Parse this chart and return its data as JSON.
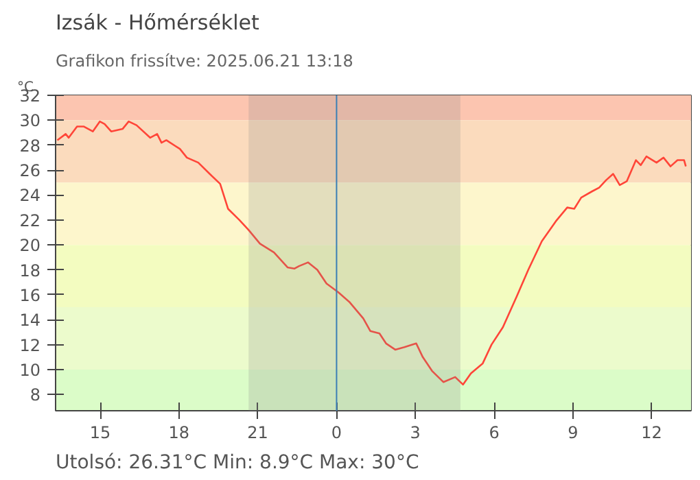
{
  "chart_data": {
    "type": "line",
    "title": "Izsák - Hőmérséklet",
    "subtitle": "Grafikon frissítve: 2025.06.21 13:18",
    "ylabel": "°C",
    "annotations": [
      "Utolsó: 26.31°C  Min: 8.9°C  Max: 30°C"
    ],
    "x": [
      "2025-06-20T13:22",
      "2025-06-20T13:41",
      "2025-06-20T13:48",
      "2025-06-20T14:07",
      "2025-06-20T14:22",
      "2025-06-20T14:43",
      "2025-06-20T14:59",
      "2025-06-20T15:10",
      "2025-06-20T15:25",
      "2025-06-20T15:51",
      "2025-06-20T16:05",
      "2025-06-20T16:23",
      "2025-06-20T16:54",
      "2025-06-20T17:10",
      "2025-06-20T17:20",
      "2025-06-20T17:31",
      "2025-06-20T18:02",
      "2025-06-20T18:18",
      "2025-06-20T18:44",
      "2025-06-20T19:10",
      "2025-06-20T19:34",
      "2025-06-20T19:52",
      "2025-06-20T20:18",
      "2025-06-20T20:39",
      "2025-06-20T21:05",
      "2025-06-20T21:37",
      "2025-06-20T22:08",
      "2025-06-20T22:24",
      "2025-06-20T22:34",
      "2025-06-20T22:55",
      "2025-06-20T23:16",
      "2025-06-20T23:37",
      "2025-06-21T00:04",
      "2025-06-21T00:30",
      "2025-06-21T01:01",
      "2025-06-21T01:17",
      "2025-06-21T01:38",
      "2025-06-21T01:53",
      "2025-06-21T02:14",
      "2025-06-21T02:35",
      "2025-06-21T03:02",
      "2025-06-21T03:17",
      "2025-06-21T03:38",
      "2025-06-21T04:04",
      "2025-06-21T04:31",
      "2025-06-21T04:49",
      "2025-06-21T05:07",
      "2025-06-21T05:34",
      "2025-06-21T05:54",
      "2025-06-21T06:20",
      "2025-06-21T06:52",
      "2025-06-21T07:18",
      "2025-06-21T07:49",
      "2025-06-21T08:21",
      "2025-06-21T08:47",
      "2025-06-21T09:03",
      "2025-06-21T09:19",
      "2025-06-21T09:44",
      "2025-06-21T10:00",
      "2025-06-21T10:16",
      "2025-06-21T10:32",
      "2025-06-21T10:47",
      "2025-06-21T11:03",
      "2025-06-21T11:24",
      "2025-06-21T11:35",
      "2025-06-21T11:48",
      "2025-06-21T12:11",
      "2025-06-21T12:27",
      "2025-06-21T12:43",
      "2025-06-21T12:59",
      "2025-06-21T13:14",
      "2025-06-21T13:18"
    ],
    "series": [
      {
        "color": "#ff4538",
        "values": [
          28.4,
          28.9,
          28.6,
          29.5,
          29.5,
          29.1,
          29.9,
          29.7,
          29.1,
          29.3,
          29.9,
          29.6,
          28.6,
          28.9,
          28.2,
          28.4,
          27.7,
          27.0,
          26.6,
          25.7,
          24.9,
          22.9,
          22.0,
          21.2,
          20.1,
          19.4,
          18.2,
          18.1,
          18.3,
          18.6,
          18.0,
          16.9,
          16.2,
          15.4,
          14.1,
          13.1,
          12.9,
          12.1,
          11.6,
          11.8,
          12.1,
          11.0,
          9.9,
          9.0,
          9.4,
          8.8,
          9.7,
          10.5,
          12.0,
          13.4,
          15.9,
          18.0,
          20.3,
          21.9,
          23.0,
          22.9,
          23.8,
          24.3,
          24.6,
          25.2,
          25.7,
          24.8,
          25.1,
          26.8,
          26.4,
          27.1,
          26.6,
          27.0,
          26.3,
          26.8,
          26.8,
          26.3
        ]
      }
    ],
    "xlim": [
      "2025-06-20T13:18",
      "2025-06-21T13:30"
    ],
    "ylim": [
      6.7,
      32
    ],
    "xticks": [
      {
        "value": "2025-06-20T15:00",
        "label": "15"
      },
      {
        "value": "2025-06-20T18:00",
        "label": "18"
      },
      {
        "value": "2025-06-20T21:00",
        "label": "21"
      },
      {
        "value": "2025-06-21T00:00",
        "label": "0"
      },
      {
        "value": "2025-06-21T03:00",
        "label": "3"
      },
      {
        "value": "2025-06-21T06:00",
        "label": "6"
      },
      {
        "value": "2025-06-21T09:00",
        "label": "9"
      },
      {
        "value": "2025-06-21T12:00",
        "label": "12"
      }
    ],
    "yticks": [
      8,
      10,
      12,
      14,
      16,
      18,
      20,
      22,
      24,
      26,
      28,
      30,
      32
    ],
    "bands": [
      {
        "axis": "y",
        "from": 30,
        "to": 32,
        "color": "#fcc5b0"
      },
      {
        "axis": "y",
        "from": 25,
        "to": 30,
        "color": "#fbdbbd"
      },
      {
        "axis": "y",
        "from": 20,
        "to": 25,
        "color": "#fdf6cc"
      },
      {
        "axis": "y",
        "from": 15,
        "to": 20,
        "color": "#f3fcc0"
      },
      {
        "axis": "y",
        "from": 10,
        "to": 15,
        "color": "#ecfbcc"
      },
      {
        "axis": "y",
        "from": 6.7,
        "to": 10,
        "color": "#dbfcc8"
      },
      {
        "axis": "x",
        "from": "2025-06-20T20:39",
        "to": "2025-06-21T04:43",
        "color": "#8a8a8a"
      }
    ],
    "ref_lines": [
      {
        "axis": "x",
        "value": "2025-06-21T00:00",
        "color": "#3a7fb5"
      }
    ],
    "grid": false,
    "marker": "none",
    "line_style": "solid"
  }
}
